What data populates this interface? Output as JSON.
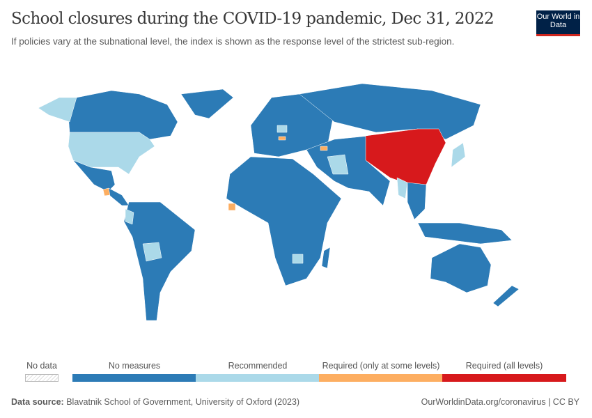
{
  "header": {
    "title": "School closures during the COVID-19 pandemic, Dec 31, 2022",
    "subtitle": "If policies vary at the subnational level, the index is shown as the response level of the strictest sub-region.",
    "logo_text": "Our World in Data"
  },
  "legend": {
    "no_data": "No data",
    "bins": [
      {
        "label": "No measures",
        "color": "#2c7bb6"
      },
      {
        "label": "Recommended",
        "color": "#abd9e9"
      },
      {
        "label": "Required (only at some levels)",
        "color": "#fdae61"
      },
      {
        "label": "Required (all levels)",
        "color": "#d7191c"
      }
    ]
  },
  "chart_data": {
    "type": "choropleth",
    "date": "Dec 31, 2022",
    "categories": [
      "No measures",
      "Recommended",
      "Required (only at some levels)",
      "Required (all levels)"
    ],
    "default_category": "No measures",
    "regions": [
      {
        "name": "China",
        "category": "Required (all levels)"
      },
      {
        "name": "United States",
        "category": "Recommended"
      },
      {
        "name": "Alaska (US)",
        "category": "Recommended"
      },
      {
        "name": "Bolivia",
        "category": "Recommended"
      },
      {
        "name": "Ecuador",
        "category": "Recommended"
      },
      {
        "name": "Iran",
        "category": "Recommended"
      },
      {
        "name": "Japan",
        "category": "Recommended"
      },
      {
        "name": "Myanmar",
        "category": "Recommended"
      },
      {
        "name": "Botswana",
        "category": "Recommended"
      },
      {
        "name": "Poland",
        "category": "Recommended"
      },
      {
        "name": "Guatemala",
        "category": "Required (only at some levels)"
      },
      {
        "name": "Sierra Leone",
        "category": "Required (only at some levels)"
      },
      {
        "name": "Hungary",
        "category": "Required (only at some levels)"
      },
      {
        "name": "Armenia",
        "category": "Required (only at some levels)"
      },
      {
        "name": "Zimbabwe",
        "category": "Required (only at some levels)"
      }
    ]
  },
  "footer": {
    "source_label": "Data source:",
    "source": "Blavatnik School of Government, University of Oxford (2023)",
    "link": "OurWorldinData.org/coronavirus | CC BY"
  }
}
